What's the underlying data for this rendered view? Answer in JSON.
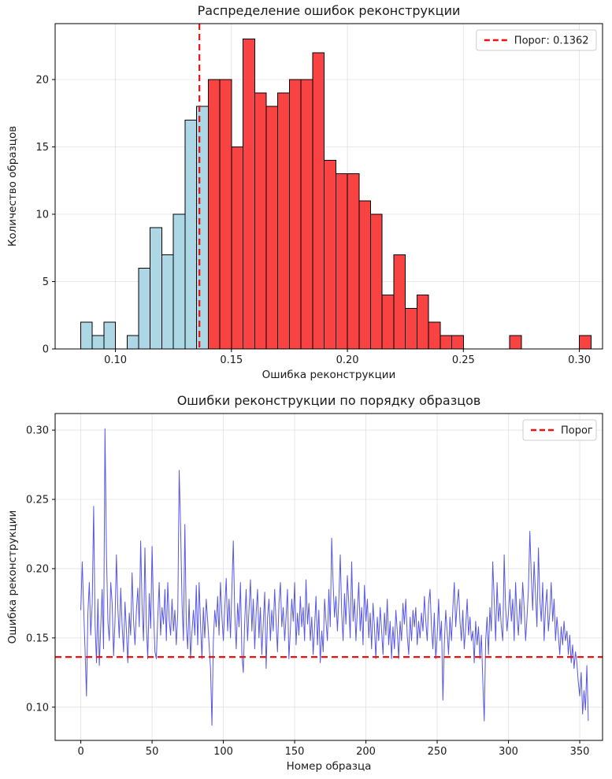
{
  "figure": {
    "background": "#ffffff"
  },
  "chart_data": [
    {
      "type": "bar",
      "subtype": "histogram",
      "title": "Распределение ошибок реконструкции",
      "xlabel": "Ошибка реконструкции",
      "ylabel": "Количество образцов",
      "bin_start": 0.085,
      "bin_width": 0.005,
      "counts": [
        2,
        1,
        2,
        0,
        1,
        6,
        9,
        7,
        10,
        17,
        18,
        20,
        20,
        15,
        23,
        19,
        18,
        19,
        20,
        20,
        22,
        14,
        13,
        13,
        11,
        10,
        4,
        7,
        3,
        4,
        2,
        1,
        1,
        0,
        0,
        0,
        0,
        1,
        0,
        0,
        0,
        0,
        0,
        1
      ],
      "threshold": 0.1362,
      "legend_label": "Порог: 0.1362",
      "xlim": [
        0.074,
        0.31
      ],
      "ylim": [
        0,
        24.15
      ],
      "xticks": [
        0.1,
        0.15,
        0.2,
        0.25,
        0.3
      ],
      "xtick_labels": [
        "0.10",
        "0.15",
        "0.20",
        "0.25",
        "0.30"
      ],
      "yticks": [
        0,
        5,
        10,
        15,
        20
      ],
      "ytick_labels": [
        "0",
        "5",
        "10",
        "15",
        "20"
      ],
      "grid": true,
      "legend_position": "upper right",
      "colors": {
        "below": "#aed7e6",
        "above": "#f94343",
        "edge": "#000000",
        "threshold": "#ee1111"
      }
    },
    {
      "type": "line",
      "title": "Ошибки реконструкции по порядку образцов",
      "xlabel": "Номер образца",
      "ylabel": "Ошибка реконструкции",
      "threshold": 0.1362,
      "legend_label": "Порог",
      "xlim": [
        -18,
        366
      ],
      "ylim": [
        0.076,
        0.312
      ],
      "xticks": [
        0,
        50,
        100,
        150,
        200,
        250,
        300,
        350
      ],
      "xtick_labels": [
        "0",
        "50",
        "100",
        "150",
        "200",
        "250",
        "300",
        "350"
      ],
      "yticks": [
        0.1,
        0.15,
        0.2,
        0.25,
        0.3
      ],
      "ytick_labels": [
        "0.10",
        "0.15",
        "0.20",
        "0.25",
        "0.30"
      ],
      "grid": true,
      "legend_position": "upper right",
      "colors": {
        "line": "#3a3ae0",
        "threshold": "#ee1111"
      },
      "values": [
        0.17,
        0.205,
        0.172,
        0.141,
        0.108,
        0.168,
        0.19,
        0.152,
        0.175,
        0.245,
        0.16,
        0.132,
        0.178,
        0.13,
        0.158,
        0.185,
        0.142,
        0.301,
        0.21,
        0.162,
        0.148,
        0.19,
        0.175,
        0.137,
        0.162,
        0.21,
        0.172,
        0.15,
        0.186,
        0.158,
        0.14,
        0.176,
        0.155,
        0.132,
        0.168,
        0.152,
        0.197,
        0.163,
        0.145,
        0.17,
        0.186,
        0.158,
        0.22,
        0.172,
        0.148,
        0.215,
        0.16,
        0.135,
        0.182,
        0.157,
        0.216,
        0.17,
        0.14,
        0.135,
        0.165,
        0.19,
        0.152,
        0.172,
        0.16,
        0.185,
        0.148,
        0.19,
        0.163,
        0.152,
        0.178,
        0.155,
        0.17,
        0.145,
        0.168,
        0.271,
        0.23,
        0.175,
        0.148,
        0.232,
        0.16,
        0.142,
        0.178,
        0.135,
        0.155,
        0.17,
        0.152,
        0.188,
        0.145,
        0.19,
        0.16,
        0.135,
        0.172,
        0.15,
        0.178,
        0.162,
        0.145,
        0.128,
        0.087,
        0.148,
        0.17,
        0.158,
        0.18,
        0.152,
        0.19,
        0.165,
        0.148,
        0.172,
        0.193,
        0.155,
        0.178,
        0.15,
        0.185,
        0.22,
        0.168,
        0.142,
        0.175,
        0.158,
        0.19,
        0.138,
        0.125,
        0.162,
        0.185,
        0.148,
        0.17,
        0.192,
        0.155,
        0.178,
        0.142,
        0.168,
        0.185,
        0.15,
        0.172,
        0.138,
        0.16,
        0.183,
        0.128,
        0.165,
        0.178,
        0.148,
        0.17,
        0.155,
        0.185,
        0.162,
        0.14,
        0.175,
        0.19,
        0.158,
        0.172,
        0.148,
        0.165,
        0.185,
        0.135,
        0.155,
        0.178,
        0.162,
        0.19,
        0.145,
        0.168,
        0.152,
        0.18,
        0.158,
        0.172,
        0.148,
        0.192,
        0.16,
        0.175,
        0.148,
        0.165,
        0.138,
        0.158,
        0.18,
        0.145,
        0.17,
        0.132,
        0.155,
        0.14,
        0.178,
        0.162,
        0.148,
        0.185,
        0.158,
        0.222,
        0.19,
        0.165,
        0.18,
        0.155,
        0.178,
        0.21,
        0.168,
        0.148,
        0.182,
        0.16,
        0.195,
        0.175,
        0.15,
        0.205,
        0.162,
        0.178,
        0.148,
        0.17,
        0.19,
        0.155,
        0.172,
        0.145,
        0.188,
        0.162,
        0.178,
        0.15,
        0.168,
        0.142,
        0.175,
        0.158,
        0.135,
        0.165,
        0.148,
        0.172,
        0.155,
        0.138,
        0.168,
        0.152,
        0.178,
        0.145,
        0.162,
        0.135,
        0.158,
        0.142,
        0.17,
        0.155,
        0.135,
        0.162,
        0.148,
        0.175,
        0.16,
        0.178,
        0.152,
        0.138,
        0.165,
        0.148,
        0.17,
        0.158,
        0.172,
        0.145,
        0.162,
        0.15,
        0.168,
        0.155,
        0.18,
        0.162,
        0.148,
        0.175,
        0.185,
        0.158,
        0.142,
        0.168,
        0.135,
        0.152,
        0.178,
        0.148,
        0.162,
        0.105,
        0.145,
        0.17,
        0.155,
        0.138,
        0.165,
        0.148,
        0.172,
        0.19,
        0.158,
        0.175,
        0.185,
        0.162,
        0.148,
        0.17,
        0.142,
        0.158,
        0.178,
        0.152,
        0.165,
        0.148,
        0.155,
        0.132,
        0.162,
        0.145,
        0.158,
        0.135,
        0.152,
        0.118,
        0.09,
        0.148,
        0.165,
        0.138,
        0.172,
        0.155,
        0.205,
        0.178,
        0.148,
        0.19,
        0.162,
        0.175,
        0.158,
        0.148,
        0.21,
        0.172,
        0.155,
        0.168,
        0.185,
        0.162,
        0.178,
        0.148,
        0.19,
        0.165,
        0.152,
        0.178,
        0.16,
        0.19,
        0.172,
        0.148,
        0.165,
        0.185,
        0.227,
        0.195,
        0.17,
        0.205,
        0.182,
        0.158,
        0.215,
        0.178,
        0.162,
        0.19,
        0.148,
        0.172,
        0.185,
        0.155,
        0.168,
        0.19,
        0.162,
        0.178,
        0.148,
        0.165,
        0.152,
        0.138,
        0.158,
        0.145,
        0.162,
        0.148,
        0.155,
        0.138,
        0.152,
        0.132,
        0.145,
        0.128,
        0.14,
        0.132,
        0.118,
        0.108,
        0.125,
        0.095,
        0.112,
        0.098,
        0.13,
        0.09
      ]
    }
  ]
}
